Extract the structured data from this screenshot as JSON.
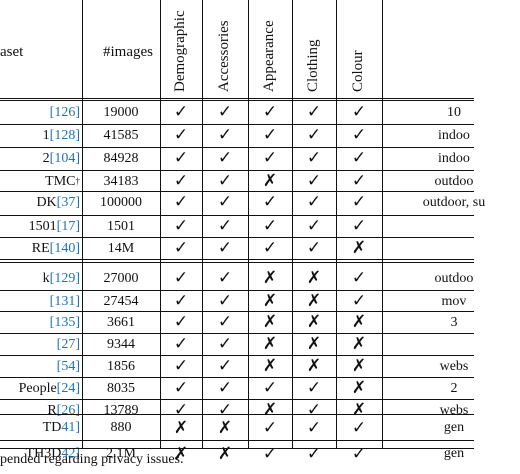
{
  "table": {
    "header": {
      "dataset": "aset",
      "images": "#images",
      "attributes": [
        "Demographic",
        "Accessories",
        "Appearance",
        "Clothing",
        "Colour"
      ]
    },
    "groups": [
      {
        "rows": [
          {
            "name": "",
            "ref": "[126]",
            "sup": "",
            "images": "19000",
            "marks": [
              "✓",
              "✓",
              "✓",
              "✓",
              "✓"
            ],
            "notes": "10"
          },
          {
            "name": "1 ",
            "ref": "[128]",
            "sup": "",
            "images": "41585",
            "marks": [
              "✓",
              "✓",
              "✓",
              "✓",
              "✓"
            ],
            "notes": "indoo"
          },
          {
            "name": "2 ",
            "ref": "[104]",
            "sup": "",
            "images": "84928",
            "marks": [
              "✓",
              "✓",
              "✓",
              "✓",
              "✓"
            ],
            "notes": "indoo"
          },
          {
            "name": "TMC",
            "ref": "",
            "sup": "†",
            "images": "34183",
            "marks": [
              "✓",
              "✓",
              "✗",
              "✓",
              "✓"
            ],
            "notes": "outdoo"
          },
          {
            "name": "DK",
            "ref": "[37]",
            "sup": "",
            "images": "100000",
            "marks": [
              "✓",
              "✓",
              "✓",
              "✓",
              "✓"
            ],
            "notes": "outdoor, su"
          },
          {
            "name": "1501 ",
            "ref": "[17]",
            "sup": "",
            "images": "1501",
            "marks": [
              "✓",
              "✓",
              "✓",
              "✓",
              "✓"
            ],
            "notes": ""
          },
          {
            "name": "RE ",
            "ref": "[140]",
            "sup": "",
            "images": "14M",
            "marks": [
              "✓",
              "✓",
              "✓",
              "✓",
              "✗"
            ],
            "notes": ""
          }
        ]
      },
      {
        "rows": [
          {
            "name": "k ",
            "ref": "[129]",
            "sup": "",
            "images": "27000",
            "marks": [
              "✓",
              "✓",
              "✗",
              "✗",
              "✓"
            ],
            "notes": "outdoo"
          },
          {
            "name": "",
            "ref": "[131]",
            "sup": "",
            "images": "27454",
            "marks": [
              "✓",
              "✓",
              "✗",
              "✗",
              "✓"
            ],
            "notes": "mov"
          },
          {
            "name": "",
            "ref": "[135]",
            "sup": "",
            "images": "3661",
            "marks": [
              "✓",
              "✓",
              "✗",
              "✗",
              "✗"
            ],
            "notes": "3"
          },
          {
            "name": " ",
            "ref": "[27]",
            "sup": "",
            "images": "9344",
            "marks": [
              "✓",
              "✓",
              "✗",
              "✗",
              "✗"
            ],
            "notes": ""
          },
          {
            "name": " ",
            "ref": "[54]",
            "sup": "",
            "images": "1856",
            "marks": [
              "✓",
              "✓",
              "✗",
              "✗",
              "✗"
            ],
            "notes": "webs"
          },
          {
            "name": "People ",
            "ref": "[24]",
            "sup": "",
            "images": "8035",
            "marks": [
              "✓",
              "✓",
              "✓",
              "✓",
              "✗"
            ],
            "notes": "2"
          },
          {
            "name": "R ",
            "ref": "[26]",
            "sup": "",
            "images": "13789",
            "marks": [
              "✓",
              "✓",
              "✗",
              "✓",
              "✗"
            ],
            "notes": "webs"
          }
        ]
      },
      {
        "rows": [
          {
            "name": "TD",
            "ref": "41]",
            "sup": "",
            "images": "880",
            "marks": [
              "✗",
              "✗",
              "✓",
              "✓",
              "✓"
            ],
            "notes": "gen"
          },
          {
            "name": "TH3D",
            "ref": "42]",
            "sup": "",
            "images": "2.1M",
            "marks": [
              "✗",
              "✗",
              "✓",
              "✓",
              "✓"
            ],
            "notes": "gen"
          }
        ]
      }
    ]
  },
  "footnote": "pended regarding privacy issues."
}
